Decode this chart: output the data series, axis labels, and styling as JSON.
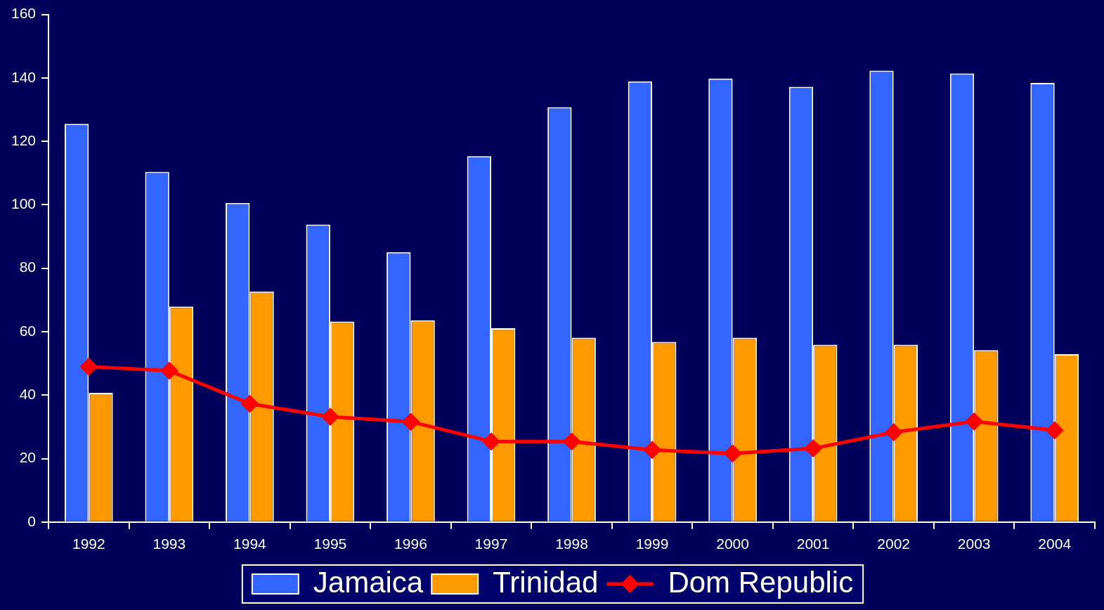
{
  "chart_data": {
    "type": "bar",
    "categories": [
      "1992",
      "1993",
      "1994",
      "1995",
      "1996",
      "1997",
      "1998",
      "1999",
      "2000",
      "2001",
      "2002",
      "2003",
      "2004"
    ],
    "series": [
      {
        "name": "Jamaica",
        "color": "#3366ff",
        "values": [
          125.5,
          110.4,
          100.6,
          93.8,
          85.1,
          115.3,
          130.8,
          138.9,
          139.8,
          137.2,
          142.3,
          141.4,
          138.4
        ]
      },
      {
        "name": "Trinidad",
        "color": "#ff9900",
        "values": [
          40.7,
          67.9,
          72.7,
          63.2,
          63.6,
          61.1,
          58.1,
          56.8,
          58.1,
          55.9,
          55.9,
          54.2,
          52.9
        ]
      },
      {
        "name": "Dom Republic",
        "type": "line",
        "color": "#ff0000",
        "marker": "diamond",
        "values": [
          49.0,
          47.7,
          37.3,
          33.2,
          31.6,
          25.4,
          25.4,
          22.7,
          21.6,
          23.2,
          28.3,
          31.7,
          28.9
        ]
      }
    ],
    "ylim": [
      0,
      160
    ],
    "yticks": [
      0,
      20,
      40,
      60,
      80,
      100,
      120,
      140,
      160
    ],
    "legend": "bottom"
  }
}
